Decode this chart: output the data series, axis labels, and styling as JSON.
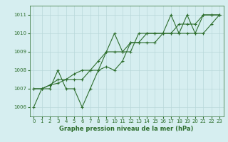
{
  "title": "",
  "xlabel": "Graphe pression niveau de la mer (hPa)",
  "background_color": "#d6eef0",
  "grid_color": "#b8d8da",
  "line_color": "#2d6e2d",
  "ylim": [
    1005.5,
    1011.5
  ],
  "xlim": [
    -0.5,
    23.5
  ],
  "yticks": [
    1006,
    1007,
    1008,
    1009,
    1010,
    1011
  ],
  "xticks": [
    0,
    1,
    2,
    3,
    4,
    5,
    6,
    7,
    8,
    9,
    10,
    11,
    12,
    13,
    14,
    15,
    16,
    17,
    18,
    19,
    20,
    21,
    22,
    23
  ],
  "series": [
    [
      1006.0,
      1007.0,
      1007.0,
      1008.0,
      1007.0,
      1007.0,
      1006.0,
      1007.0,
      1008.0,
      1009.0,
      1010.0,
      1009.0,
      1009.0,
      1010.0,
      1010.0,
      1010.0,
      1010.0,
      1011.0,
      1010.0,
      1011.0,
      1010.0,
      1011.0,
      1011.0,
      1011.0
    ],
    [
      1007.0,
      1007.0,
      1007.2,
      1007.5,
      1007.5,
      1007.5,
      1007.5,
      1008.0,
      1008.5,
      1009.0,
      1009.0,
      1009.0,
      1009.5,
      1009.5,
      1010.0,
      1010.0,
      1010.0,
      1010.0,
      1010.5,
      1010.5,
      1010.5,
      1011.0,
      1011.0,
      1011.0
    ],
    [
      1007.0,
      1007.0,
      1007.2,
      1007.3,
      1007.5,
      1007.8,
      1008.0,
      1008.0,
      1008.0,
      1008.2,
      1008.0,
      1008.5,
      1009.5,
      1009.5,
      1009.5,
      1009.5,
      1010.0,
      1010.0,
      1010.0,
      1010.0,
      1010.0,
      1010.0,
      1010.5,
      1011.0
    ]
  ]
}
